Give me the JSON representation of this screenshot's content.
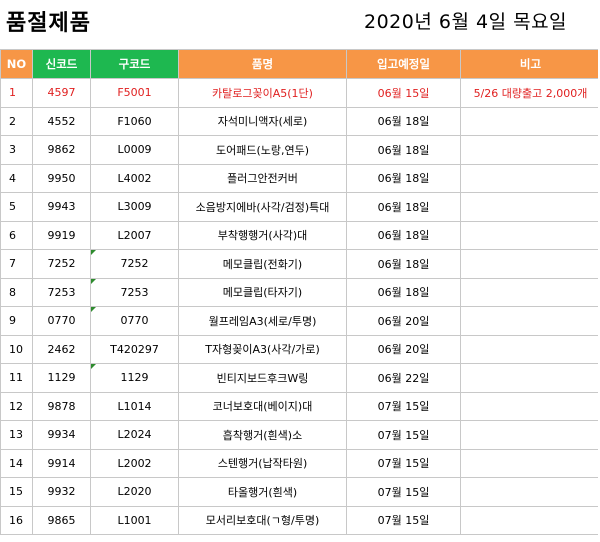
{
  "title": "품절제품",
  "date": "2020년 6월 4일 목요일",
  "headers": [
    "NO",
    "신코드",
    "구코드",
    "품명",
    "입고예정일",
    "비고"
  ],
  "rows": [
    {
      "no": "1",
      "new_code": "4597",
      "old_code": "F5001",
      "name": "카탈로그꽂이A5(1단)",
      "eta": "06월 15일",
      "note": "5/26 대량출고 2,000개",
      "highlight": true
    },
    {
      "no": "2",
      "new_code": "4552",
      "old_code": "F1060",
      "name": "자석미니액자(세로)",
      "eta": "06월 18일",
      "note": ""
    },
    {
      "no": "3",
      "new_code": "9862",
      "old_code": "L0009",
      "name": "도어패드(노랑,연두)",
      "eta": "06월 18일",
      "note": ""
    },
    {
      "no": "4",
      "new_code": "9950",
      "old_code": "L4002",
      "name": "플러그안전커버",
      "eta": "06월 18일",
      "note": ""
    },
    {
      "no": "5",
      "new_code": "9943",
      "old_code": "L3009",
      "name": "소음방지에바(사각/검정)특대",
      "eta": "06월 18일",
      "note": ""
    },
    {
      "no": "6",
      "new_code": "9919",
      "old_code": "L2007",
      "name": "부착행행거(사각)대",
      "eta": "06월 18일",
      "note": ""
    },
    {
      "no": "7",
      "new_code": "7252",
      "old_code": "7252",
      "name": "메모클립(전화기)",
      "eta": "06월 18일",
      "note": "",
      "mark": true
    },
    {
      "no": "8",
      "new_code": "7253",
      "old_code": "7253",
      "name": "메모클립(타자기)",
      "eta": "06월 18일",
      "note": "",
      "mark": true
    },
    {
      "no": "9",
      "new_code": "0770",
      "old_code": "0770",
      "name": "월프레임A3(세로/투명)",
      "eta": "06월 20일",
      "note": "",
      "mark": true
    },
    {
      "no": "10",
      "new_code": "2462",
      "old_code": "T420297",
      "name": "T자형꽂이A3(사각/가로)",
      "eta": "06월 20일",
      "note": ""
    },
    {
      "no": "11",
      "new_code": "1129",
      "old_code": "1129",
      "name": "빈티지보드후크W링",
      "eta": "06월 22일",
      "note": "",
      "mark": true
    },
    {
      "no": "12",
      "new_code": "9878",
      "old_code": "L1014",
      "name": "코너보호대(베이지)대",
      "eta": "07월 15일",
      "note": ""
    },
    {
      "no": "13",
      "new_code": "9934",
      "old_code": "L2024",
      "name": "흡착행거(흰색)소",
      "eta": "07월 15일",
      "note": ""
    },
    {
      "no": "14",
      "new_code": "9914",
      "old_code": "L2002",
      "name": "스텐행거(납작타원)",
      "eta": "07월 15일",
      "note": ""
    },
    {
      "no": "15",
      "new_code": "9932",
      "old_code": "L2020",
      "name": "타올행거(흰색)",
      "eta": "07월 15일",
      "note": ""
    },
    {
      "no": "16",
      "new_code": "9865",
      "old_code": "L1001",
      "name": "모서리보호대(ㄱ형/투명)",
      "eta": "07월 15일",
      "note": ""
    }
  ]
}
